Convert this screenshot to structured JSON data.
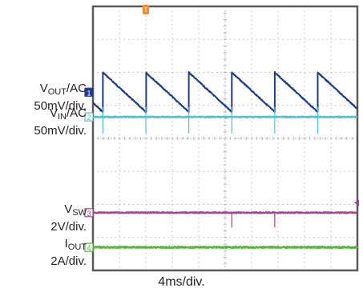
{
  "scope": {
    "background": "#ffffff",
    "grid_color": "#b9b9b9",
    "border_color": "#5a5a5a",
    "timebase": "4ms/div.",
    "trigger_marker": "T"
  },
  "chart_data": {
    "type": "line",
    "title": "",
    "xlabel": "4ms/div.",
    "x_divisions": 10,
    "y_divisions": 8,
    "x_unit": "ms",
    "x_range": [
      0,
      40
    ],
    "grid": true,
    "series": [
      {
        "id": "ch1",
        "name_main": "V",
        "name_sub": "OUT",
        "name_suffix": "/AC",
        "scale": "50mV/div.",
        "marker": "1",
        "color": "#1f3c88",
        "waveform": "sawtooth",
        "baseline_div": 2.6,
        "period_ms": 6.5,
        "peak_to_peak_mV": 60,
        "first_jump_ms": 1.5
      },
      {
        "id": "ch2",
        "name_main": "V",
        "name_sub": "IN",
        "name_suffix": "/AC",
        "scale": "50mV/div.",
        "marker": "2",
        "color": "#4cc3d0",
        "waveform": "flat_with_spikes",
        "baseline_div": 3.35,
        "spikes_ms": [
          1.5,
          8.0,
          14.5,
          21.0,
          27.5,
          34.0
        ],
        "spike_mV": 25
      },
      {
        "id": "ch3",
        "name_main": "V",
        "name_sub": "SW",
        "name_suffix": "",
        "scale": "2V/div.",
        "marker": "3",
        "color": "#a0458f",
        "waveform": "flat_with_spikes",
        "baseline_div": 6.25,
        "spikes_ms": [
          21.0,
          27.5
        ],
        "spike_V": 0.9
      },
      {
        "id": "ch4",
        "name_main": "I",
        "name_sub": "OUT",
        "name_suffix": "",
        "scale": "2A/div.",
        "marker": "4",
        "color": "#55b83c",
        "waveform": "flat",
        "baseline_div": 7.3
      }
    ]
  }
}
